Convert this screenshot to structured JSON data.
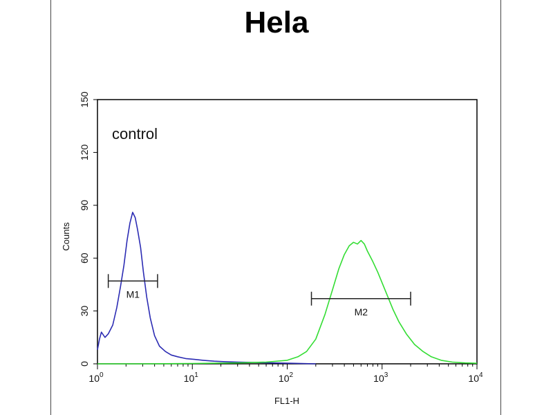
{
  "chart_data": {
    "type": "line",
    "title": "Hela",
    "annotation": "control",
    "xlabel": "FL1-H",
    "ylabel": "Counts",
    "x_scale": "log",
    "xlim": [
      1,
      10000
    ],
    "ylim": [
      0,
      150
    ],
    "x_ticks": [
      {
        "base": "10",
        "exp": "0"
      },
      {
        "base": "10",
        "exp": "1"
      },
      {
        "base": "10",
        "exp": "2"
      },
      {
        "base": "10",
        "exp": "3"
      },
      {
        "base": "10",
        "exp": "4"
      }
    ],
    "y_ticks": [
      {
        "value": 0,
        "label": "0"
      },
      {
        "value": 30,
        "label": "30"
      },
      {
        "value": 60,
        "label": "60"
      },
      {
        "value": 90,
        "label": "90"
      },
      {
        "value": 120,
        "label": "120"
      },
      {
        "value": 150,
        "label": "150"
      }
    ],
    "series": [
      {
        "color": "#2b2bb3",
        "x": [
          1.0,
          1.05,
          1.1,
          1.2,
          1.3,
          1.45,
          1.6,
          1.75,
          1.9,
          2.05,
          2.2,
          2.35,
          2.5,
          2.65,
          2.85,
          3.05,
          3.3,
          3.6,
          4.0,
          4.5,
          5.2,
          6.0,
          7.0,
          8.5,
          10.5,
          13,
          17,
          22,
          30,
          45,
          70,
          110,
          200
        ],
        "y": [
          8,
          14,
          18,
          15,
          17,
          22,
          32,
          44,
          56,
          70,
          80,
          86,
          83,
          76,
          66,
          52,
          38,
          26,
          16,
          10,
          7,
          5,
          4,
          3,
          2.5,
          2,
          1.5,
          1.2,
          1,
          0.8,
          0.5,
          0.3,
          0
        ]
      },
      {
        "color": "#33dd33",
        "x": [
          1,
          3,
          10,
          30,
          60,
          100,
          130,
          160,
          200,
          250,
          300,
          350,
          400,
          450,
          500,
          550,
          600,
          650,
          700,
          800,
          900,
          1000,
          1150,
          1300,
          1500,
          1800,
          2200,
          2700,
          3300,
          4200,
          5500,
          7500,
          10000
        ],
        "y": [
          0,
          0,
          0.2,
          0.5,
          1,
          2,
          4,
          7,
          14,
          28,
          42,
          54,
          62,
          67,
          69,
          68,
          70,
          68,
          64,
          58,
          52,
          46,
          38,
          31,
          24,
          17,
          11,
          7,
          4,
          2,
          1,
          0.5,
          0.3
        ]
      }
    ],
    "markers": [
      {
        "label": "M1",
        "x_start": 1.3,
        "x_end": 4.3,
        "y": 47
      },
      {
        "label": "M2",
        "x_start": 180,
        "x_end": 2000,
        "y": 37
      }
    ]
  }
}
